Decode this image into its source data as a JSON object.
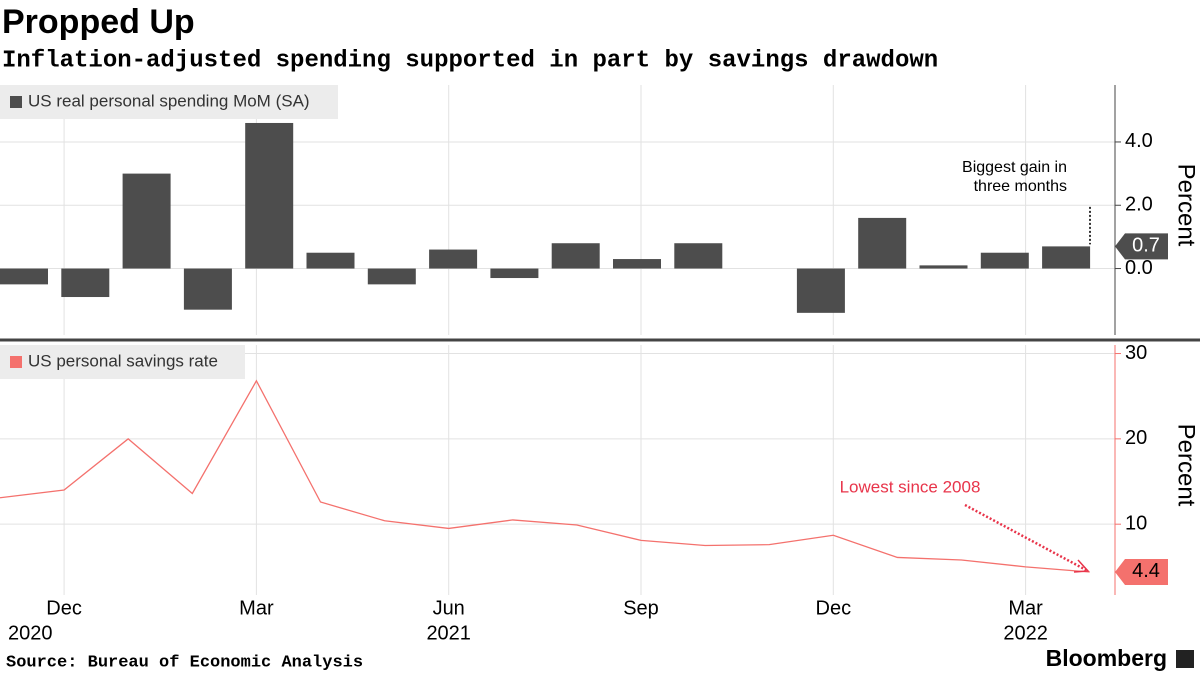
{
  "title": "Propped Up",
  "subtitle": "Inflation-adjusted spending supported in part by savings drawdown",
  "source": "Source: Bureau of Economic Analysis",
  "brand": "Bloomberg",
  "chart_data": [
    {
      "type": "bar",
      "series": [
        {
          "name": "US real personal spending MoM (SA)",
          "color": "#4d4d4d",
          "values": [
            -0.5,
            -0.9,
            3.0,
            -1.3,
            4.6,
            0.5,
            -0.5,
            0.6,
            -0.3,
            0.8,
            0.3,
            0.8,
            0.0,
            -1.4,
            1.6,
            0.1,
            0.5,
            0.7
          ]
        }
      ],
      "y_label": "Percent",
      "ylim": [
        -2.1,
        5.8
      ],
      "yticks": [
        {
          "value": 0,
          "label": "0.0"
        },
        {
          "value": 2,
          "label": "2.0"
        },
        {
          "value": 4,
          "label": "4.0"
        }
      ],
      "grid": true,
      "annotation": [
        "Biggest gain in",
        "three months"
      ]
    },
    {
      "type": "line",
      "categories": [
        null,
        "Dec",
        null,
        null,
        "Mar",
        null,
        null,
        "Jun",
        null,
        null,
        "Sep",
        null,
        null,
        "Dec",
        null,
        null,
        "Mar",
        null
      ],
      "year_labels": [
        null,
        "2020",
        null,
        null,
        null,
        null,
        null,
        "2021",
        null,
        null,
        null,
        null,
        null,
        null,
        null,
        null,
        "2022",
        null
      ],
      "series": [
        {
          "name": "US personal savings rate",
          "color": "#f4716d",
          "values": [
            13.1,
            14.0,
            20.0,
            13.6,
            26.8,
            12.6,
            10.4,
            9.5,
            10.5,
            9.9,
            8.1,
            7.5,
            7.6,
            8.7,
            6.1,
            5.8,
            5.0,
            4.4
          ]
        }
      ],
      "y_label": "Percent",
      "ylim": [
        1.7,
        31
      ],
      "yticks": [
        10,
        20,
        30
      ],
      "grid": true,
      "annotation": "Lowest since 2008",
      "annotation_color": "#e8344a"
    }
  ]
}
